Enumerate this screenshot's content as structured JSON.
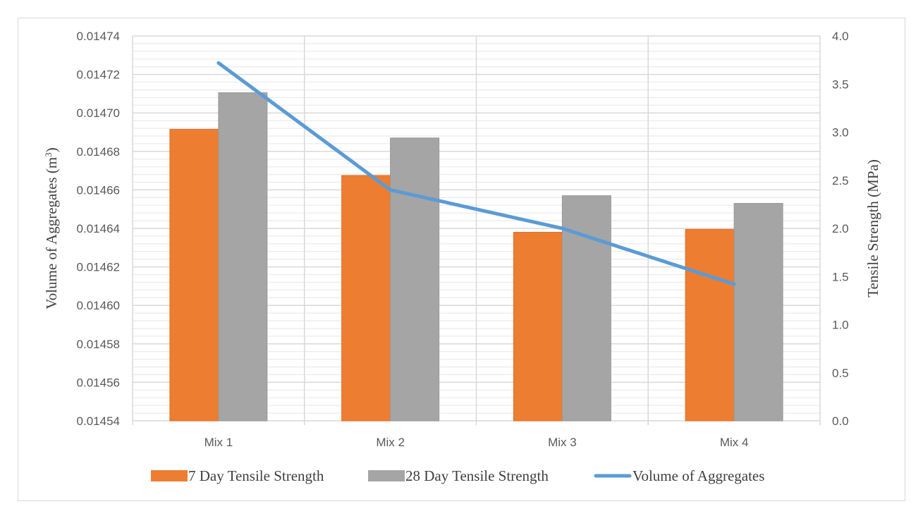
{
  "chart_data": {
    "type": "bar",
    "categories": [
      "Mix 1",
      "Mix 2",
      "Mix 3",
      "Mix 4"
    ],
    "series": [
      {
        "name": "7 Day Tensile Strength",
        "type": "bar",
        "axis": "right",
        "color": "#ED7D31",
        "values": [
          3.03,
          2.55,
          1.96,
          1.99
        ]
      },
      {
        "name": "28 Day Tensile Strength",
        "type": "bar",
        "axis": "right",
        "color": "#A5A5A5",
        "values": [
          3.41,
          2.94,
          2.34,
          2.26
        ]
      },
      {
        "name": "Volume of Aggregates",
        "type": "line",
        "axis": "left",
        "color": "#5B9BD5",
        "values": [
          0.014726,
          0.01466,
          0.01464,
          0.014611
        ]
      }
    ],
    "ylabel": "Volume of Aggregates (m3)",
    "ylabel_main": "Volume of Aggregates (m",
    "ylabel_sup": "3",
    "ylabel_end": ")",
    "y2label": "Tensile Strength (MPa)",
    "ylim": [
      0.01454,
      0.01474
    ],
    "y2lim": [
      0,
      4.0
    ],
    "yticks": [
      "0.01454",
      "0.01456",
      "0.01458",
      "0.01460",
      "0.01462",
      "0.01464",
      "0.01466",
      "0.01468",
      "0.01470",
      "0.01472",
      "0.01474"
    ],
    "y2ticks": [
      "0.0",
      "0.5",
      "1.0",
      "1.5",
      "2.0",
      "2.5",
      "3.0",
      "3.5",
      "4.0"
    ],
    "grid": true,
    "legend": "bottom"
  }
}
